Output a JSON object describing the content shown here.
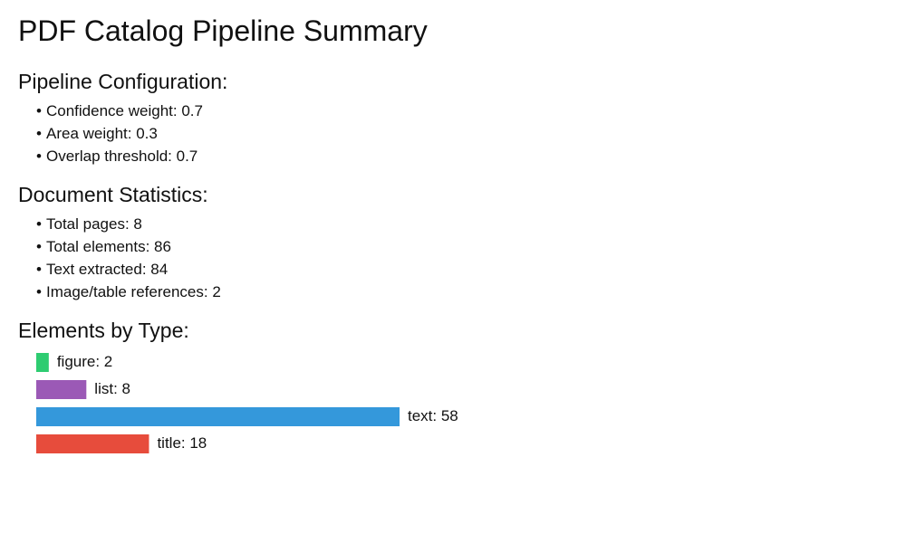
{
  "title": "PDF Catalog Pipeline Summary",
  "config": {
    "heading": "Pipeline Configuration:",
    "items": [
      "Confidence weight: 0.7",
      "Area weight: 0.3",
      "Overlap threshold: 0.7"
    ]
  },
  "stats": {
    "heading": "Document Statistics:",
    "items": [
      "Total pages: 8",
      "Total elements: 86",
      "Text extracted: 84",
      "Image/table references: 2"
    ]
  },
  "elements": {
    "heading": "Elements by Type:"
  },
  "chart_data": {
    "type": "bar",
    "orientation": "horizontal",
    "title": "Elements by Type:",
    "categories": [
      "figure",
      "list",
      "text",
      "title"
    ],
    "values": [
      2,
      8,
      58,
      18
    ],
    "colors": [
      "#2ecc71",
      "#9b59b6",
      "#3498db",
      "#e74c3c"
    ],
    "labels": [
      "figure: 2",
      "list: 8",
      "text: 58",
      "title: 18"
    ],
    "xlim": [
      0,
      58
    ],
    "grid": false,
    "legend": "none"
  }
}
